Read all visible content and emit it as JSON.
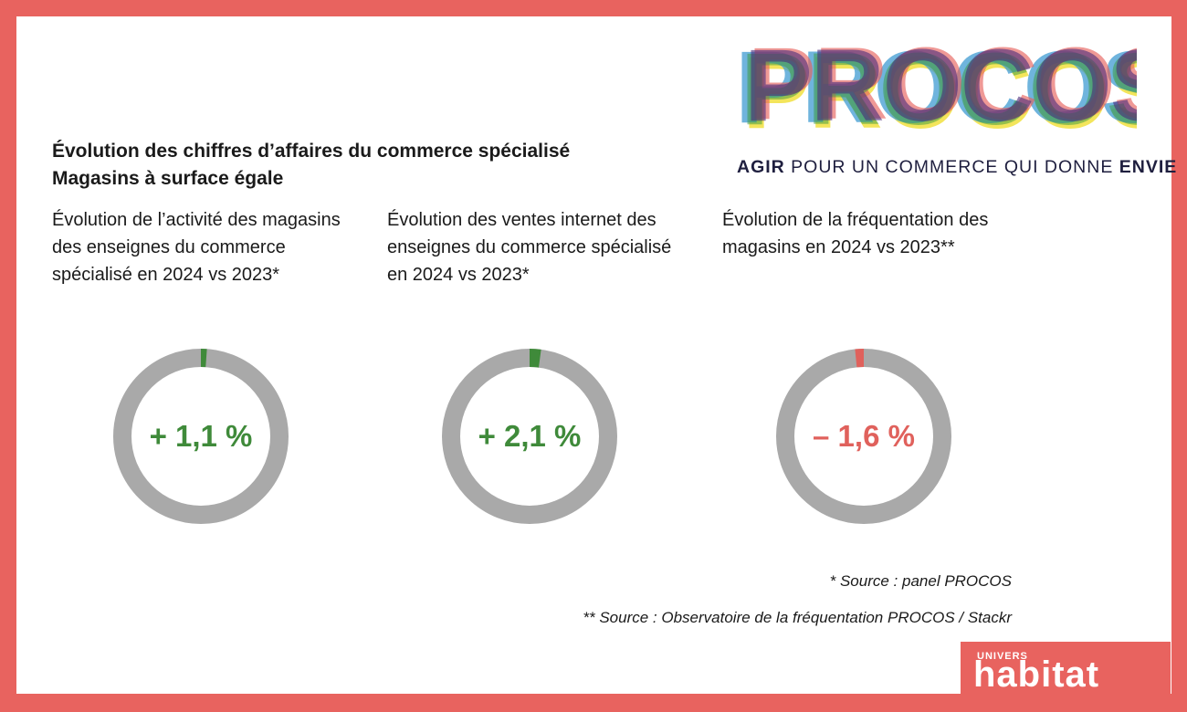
{
  "logo": {
    "word": "PROCOS",
    "tagline_start": "AGIR",
    "tagline_middle": " POUR UN COMMERCE QUI DONNE ",
    "tagline_end": "ENVIE"
  },
  "title": {
    "line1": "Évolution des chiffres d’affaires du commerce spécialisé",
    "line2": "Magasins à surface égale"
  },
  "chart_data": [
    {
      "type": "pie",
      "title": "Évolution de l’activité des magasins des enseignes du commerce spécialisé en 2024 vs 2023*",
      "value": 1.1,
      "label": "+ 1,1 %",
      "color": "#3f8a3a"
    },
    {
      "type": "pie",
      "title": "Évolution des ventes internet des enseignes du commerce spécialisé en 2024 vs 2023*",
      "value": 2.1,
      "label": "+ 2,1 %",
      "color": "#3f8a3a"
    },
    {
      "type": "pie",
      "title": "Évolution de la fréquentation des magasins en 2024 vs 2023**",
      "value": -1.6,
      "label": "– 1,6 %",
      "color": "#e0615c"
    }
  ],
  "colors": {
    "frame": "#e8635f",
    "ring": "#a9a9a9",
    "positive": "#3f8a3a",
    "negative": "#e0615c"
  },
  "footnotes": {
    "note1": "* Source : panel PROCOS",
    "note2": "** Source : Observatoire de la fréquentation PROCOS / Stackr"
  },
  "brand": {
    "small": "UNIVERS",
    "main": "habitat"
  }
}
